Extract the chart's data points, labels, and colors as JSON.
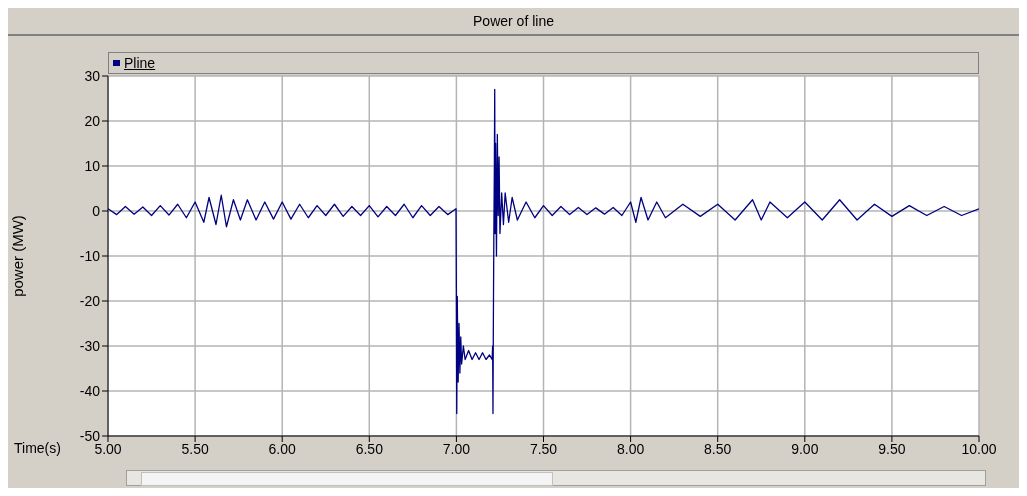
{
  "chart_data": {
    "type": "line",
    "title": "Power of line",
    "xlabel": "Time(s)",
    "ylabel": "power (MW)",
    "x": [
      5.0,
      5.05,
      5.1,
      5.15,
      5.2,
      5.25,
      5.3,
      5.35,
      5.4,
      5.45,
      5.5,
      5.55,
      5.58,
      5.62,
      5.65,
      5.68,
      5.72,
      5.76,
      5.8,
      5.85,
      5.9,
      5.95,
      6.0,
      6.05,
      6.1,
      6.15,
      6.2,
      6.25,
      6.3,
      6.35,
      6.4,
      6.45,
      6.5,
      6.55,
      6.6,
      6.65,
      6.7,
      6.75,
      6.8,
      6.85,
      6.9,
      6.95,
      6.998,
      7.0,
      7.002,
      7.005,
      7.01,
      7.015,
      7.02,
      7.025,
      7.03,
      7.04,
      7.05,
      7.07,
      7.09,
      7.11,
      7.13,
      7.15,
      7.17,
      7.19,
      7.205,
      7.208,
      7.21,
      7.212,
      7.215,
      7.218,
      7.22,
      7.222,
      7.225,
      7.23,
      7.235,
      7.24,
      7.245,
      7.25,
      7.26,
      7.27,
      7.28,
      7.3,
      7.32,
      7.35,
      7.4,
      7.45,
      7.5,
      7.55,
      7.6,
      7.65,
      7.7,
      7.75,
      7.8,
      7.85,
      7.9,
      7.95,
      8.0,
      8.03,
      8.06,
      8.1,
      8.15,
      8.2,
      8.3,
      8.4,
      8.5,
      8.6,
      8.7,
      8.75,
      8.8,
      8.9,
      9.0,
      9.1,
      9.2,
      9.3,
      9.4,
      9.5,
      9.6,
      9.7,
      9.8,
      9.9,
      10.0
    ],
    "series": [
      {
        "name": "Pline",
        "color": "#000080",
        "values": [
          0.5,
          -0.8,
          1.0,
          -0.7,
          0.9,
          -1.0,
          1.2,
          -0.9,
          1.5,
          -1.5,
          2.0,
          -2.5,
          3.0,
          -3.0,
          3.5,
          -3.5,
          2.5,
          -2.0,
          2.5,
          -2.0,
          2.0,
          -1.8,
          2.0,
          -1.8,
          1.5,
          -1.5,
          1.2,
          -1.0,
          1.5,
          -1.2,
          1.0,
          -1.0,
          1.2,
          -1.3,
          1.0,
          -1.0,
          1.5,
          -1.5,
          1.2,
          -1.0,
          1.0,
          -0.8,
          0.5,
          -20,
          -45,
          -19,
          -38,
          -25,
          -36,
          -28,
          -34,
          -30,
          -33,
          -31,
          -33,
          -31.5,
          -33,
          -31.5,
          -33,
          -32,
          -33,
          -30,
          -45,
          -26,
          -5,
          10,
          27,
          -5,
          15,
          -10,
          17,
          -1,
          12,
          -5,
          4,
          -3,
          4,
          -2.5,
          3,
          -2,
          2,
          -1.5,
          1.2,
          -1.0,
          1.0,
          -0.8,
          0.8,
          -0.8,
          0.7,
          -0.7,
          0.8,
          -1.0,
          2.0,
          -2.5,
          3.0,
          -2.0,
          2.0,
          -1.5,
          1.5,
          -1.2,
          1.5,
          -2.0,
          2.5,
          -2.0,
          2.0,
          -1.5,
          2.0,
          -2.0,
          2.5,
          -2.0,
          1.5,
          -1.2,
          1.2,
          -1.0,
          1.0,
          -1.0,
          0.5
        ]
      }
    ],
    "xlim": [
      5,
      10
    ],
    "ylim": [
      -50,
      30
    ],
    "xticks": [
      {
        "value": 5,
        "label": "5.00"
      },
      {
        "value": 5.5,
        "label": "5.50"
      },
      {
        "value": 6,
        "label": "6.00"
      },
      {
        "value": 6.5,
        "label": "6.50"
      },
      {
        "value": 7,
        "label": "7.00"
      },
      {
        "value": 7.5,
        "label": "7.50"
      },
      {
        "value": 8,
        "label": "8.00"
      },
      {
        "value": 8.5,
        "label": "8.50"
      },
      {
        "value": 9,
        "label": "9.00"
      },
      {
        "value": 9.5,
        "label": "9.50"
      },
      {
        "value": 10,
        "label": "10.00"
      }
    ],
    "yticks": [
      -50,
      -40,
      -30,
      -20,
      -10,
      0,
      10,
      20,
      30
    ],
    "grid": true,
    "legend": "top left",
    "marker": "none",
    "line_style": "solid"
  }
}
